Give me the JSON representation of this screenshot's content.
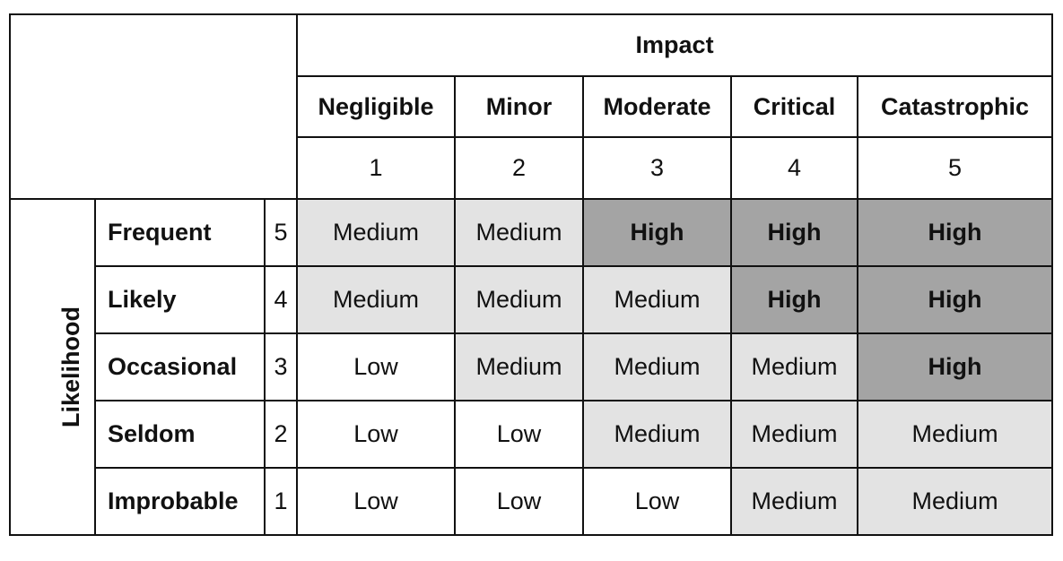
{
  "chart_data": {
    "type": "table",
    "column_group_label": "Impact",
    "row_group_label": "Likelihood",
    "columns": [
      {
        "label": "Negligible",
        "score": "1"
      },
      {
        "label": "Minor",
        "score": "2"
      },
      {
        "label": "Moderate",
        "score": "3"
      },
      {
        "label": "Critical",
        "score": "4"
      },
      {
        "label": "Catastrophic",
        "score": "5"
      }
    ],
    "rows": [
      {
        "label": "Frequent",
        "score": "5",
        "cells": [
          "Medium",
          "Medium",
          "High",
          "High",
          "High"
        ]
      },
      {
        "label": "Likely",
        "score": "4",
        "cells": [
          "Medium",
          "Medium",
          "Medium",
          "High",
          "High"
        ]
      },
      {
        "label": "Occasional",
        "score": "3",
        "cells": [
          "Low",
          "Medium",
          "Medium",
          "Medium",
          "High"
        ]
      },
      {
        "label": "Seldom",
        "score": "2",
        "cells": [
          "Low",
          "Low",
          "Medium",
          "Medium",
          "Medium"
        ]
      },
      {
        "label": "Improbable",
        "score": "1",
        "cells": [
          "Low",
          "Low",
          "Low",
          "Medium",
          "Medium"
        ]
      }
    ],
    "level_colors": {
      "Low": "#ffffff",
      "Medium": "#e3e3e3",
      "High": "#a4a4a4"
    }
  }
}
